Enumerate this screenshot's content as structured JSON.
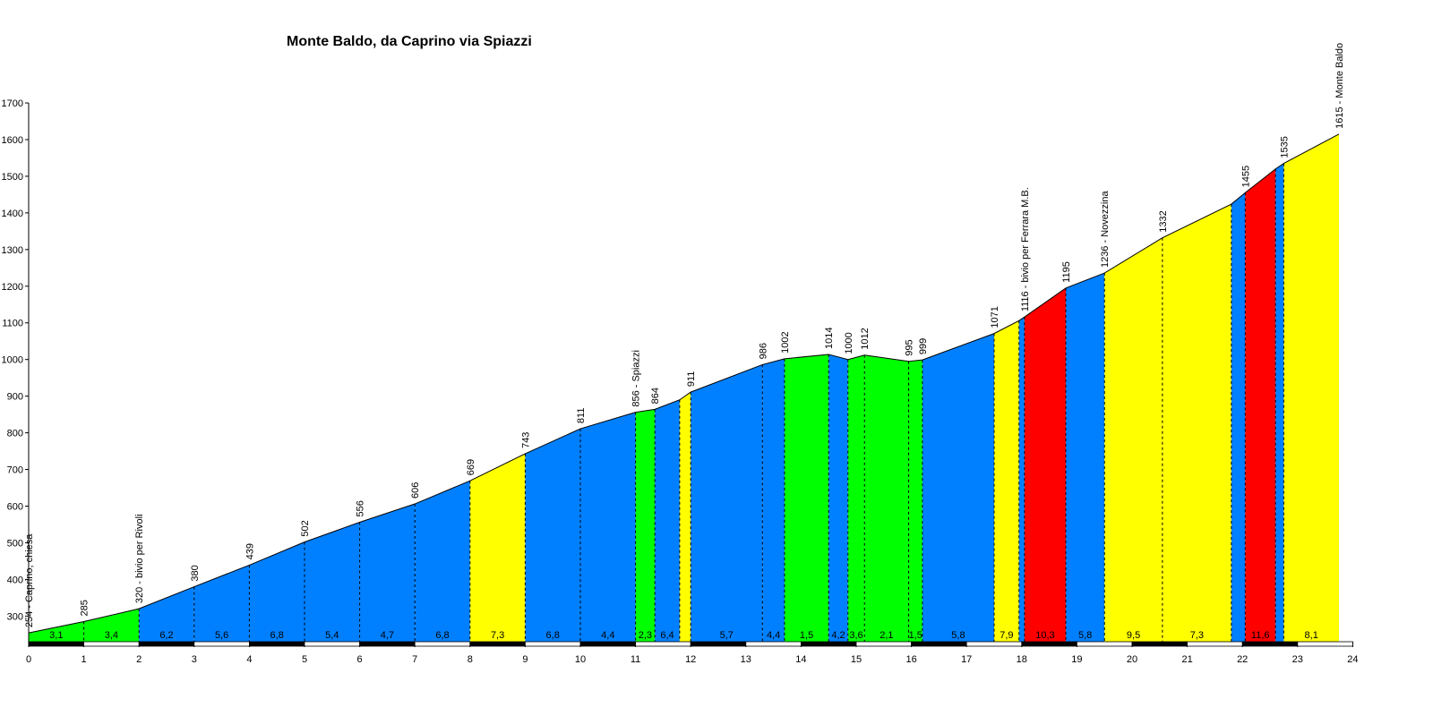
{
  "chart_data": {
    "type": "area",
    "title": "Monte Baldo, da Caprino via Spiazzi",
    "xlabel": "",
    "ylabel": "",
    "xlim": [
      0,
      24
    ],
    "ylim": [
      230,
      1700
    ],
    "x_ticks": [
      0,
      1,
      2,
      3,
      4,
      5,
      6,
      7,
      8,
      9,
      10,
      11,
      12,
      13,
      14,
      15,
      16,
      17,
      18,
      19,
      20,
      21,
      22,
      23,
      24
    ],
    "y_ticks": [
      300,
      400,
      500,
      600,
      700,
      800,
      900,
      1000,
      1100,
      1200,
      1300,
      1400,
      1500,
      1600,
      1700
    ],
    "colors": {
      "green": "#00ff00",
      "blue": "#0080ff",
      "yellow": "#ffff00",
      "red": "#ff0000"
    },
    "profile": [
      {
        "x": 0,
        "y": 254
      },
      {
        "x": 1,
        "y": 285
      },
      {
        "x": 2,
        "y": 320
      },
      {
        "x": 3,
        "y": 380
      },
      {
        "x": 4,
        "y": 439
      },
      {
        "x": 5,
        "y": 502
      },
      {
        "x": 6,
        "y": 556
      },
      {
        "x": 7,
        "y": 606
      },
      {
        "x": 8,
        "y": 669
      },
      {
        "x": 9,
        "y": 743
      },
      {
        "x": 10,
        "y": 811
      },
      {
        "x": 11,
        "y": 856
      },
      {
        "x": 11.35,
        "y": 864
      },
      {
        "x": 11.8,
        "y": 890
      },
      {
        "x": 12,
        "y": 911
      },
      {
        "x": 13.3,
        "y": 986
      },
      {
        "x": 13.7,
        "y": 1002
      },
      {
        "x": 14.5,
        "y": 1014
      },
      {
        "x": 14.85,
        "y": 1000
      },
      {
        "x": 15.15,
        "y": 1012
      },
      {
        "x": 15.95,
        "y": 995
      },
      {
        "x": 16.2,
        "y": 999
      },
      {
        "x": 17.5,
        "y": 1071
      },
      {
        "x": 17.95,
        "y": 1106
      },
      {
        "x": 18.05,
        "y": 1116
      },
      {
        "x": 18.8,
        "y": 1195
      },
      {
        "x": 19.5,
        "y": 1236
      },
      {
        "x": 20.55,
        "y": 1332
      },
      {
        "x": 21.8,
        "y": 1424
      },
      {
        "x": 22.05,
        "y": 1455
      },
      {
        "x": 22.6,
        "y": 1520
      },
      {
        "x": 22.75,
        "y": 1535
      },
      {
        "x": 23.75,
        "y": 1615
      }
    ],
    "segments": [
      {
        "from": 0,
        "to": 1,
        "color": "green",
        "gradient": "3,1"
      },
      {
        "from": 1,
        "to": 2,
        "color": "green",
        "gradient": "3,4"
      },
      {
        "from": 2,
        "to": 3,
        "color": "blue",
        "gradient": "6,2"
      },
      {
        "from": 3,
        "to": 4,
        "color": "blue",
        "gradient": "5,6"
      },
      {
        "from": 4,
        "to": 5,
        "color": "blue",
        "gradient": "6,8"
      },
      {
        "from": 5,
        "to": 6,
        "color": "blue",
        "gradient": "5,4"
      },
      {
        "from": 6,
        "to": 7,
        "color": "blue",
        "gradient": "4,7"
      },
      {
        "from": 7,
        "to": 8,
        "color": "blue",
        "gradient": "6,8"
      },
      {
        "from": 8,
        "to": 9,
        "color": "yellow",
        "gradient": "7,3"
      },
      {
        "from": 9,
        "to": 10,
        "color": "blue",
        "gradient": "6,8"
      },
      {
        "from": 10,
        "to": 11,
        "color": "blue",
        "gradient": "4,4"
      },
      {
        "from": 11,
        "to": 11.35,
        "color": "green",
        "gradient": "2,3"
      },
      {
        "from": 11.35,
        "to": 11.8,
        "color": "blue",
        "gradient": "6,4"
      },
      {
        "from": 11.8,
        "to": 12,
        "color": "yellow",
        "gradient": ""
      },
      {
        "from": 12,
        "to": 13.3,
        "color": "blue",
        "gradient": "5,7"
      },
      {
        "from": 13.3,
        "to": 13.7,
        "color": "blue",
        "gradient": "4,4"
      },
      {
        "from": 13.7,
        "to": 14.5,
        "color": "green",
        "gradient": "1,5"
      },
      {
        "from": 14.5,
        "to": 14.85,
        "color": "blue",
        "gradient": "4,2"
      },
      {
        "from": 14.85,
        "to": 15.15,
        "color": "green",
        "gradient": "3,6"
      },
      {
        "from": 15.15,
        "to": 15.95,
        "color": "green",
        "gradient": "2,1"
      },
      {
        "from": 15.95,
        "to": 16.2,
        "color": "green",
        "gradient": "1,5"
      },
      {
        "from": 16.2,
        "to": 17.5,
        "color": "blue",
        "gradient": "5,8"
      },
      {
        "from": 17.5,
        "to": 17.95,
        "color": "yellow",
        "gradient": "7,9"
      },
      {
        "from": 17.95,
        "to": 18.05,
        "color": "blue",
        "gradient": ""
      },
      {
        "from": 18.05,
        "to": 18.8,
        "color": "red",
        "gradient": "10,3"
      },
      {
        "from": 18.8,
        "to": 19.5,
        "color": "blue",
        "gradient": "5,8"
      },
      {
        "from": 19.5,
        "to": 20.55,
        "color": "yellow",
        "gradient": "9,5"
      },
      {
        "from": 20.55,
        "to": 21.8,
        "color": "yellow",
        "gradient": "7,3"
      },
      {
        "from": 21.8,
        "to": 22.05,
        "color": "blue",
        "gradient": ""
      },
      {
        "from": 22.05,
        "to": 22.6,
        "color": "red",
        "gradient": "11,6"
      },
      {
        "from": 22.6,
        "to": 22.75,
        "color": "blue",
        "gradient": ""
      },
      {
        "from": 22.75,
        "to": 23.75,
        "color": "yellow",
        "gradient": "8,1"
      }
    ],
    "annotations": [
      {
        "x": 0,
        "text": "254 - Caprino, chiesa"
      },
      {
        "x": 1,
        "text": "285"
      },
      {
        "x": 2,
        "text": "320 - bivio per Rivoli"
      },
      {
        "x": 3,
        "text": "380"
      },
      {
        "x": 4,
        "text": "439"
      },
      {
        "x": 5,
        "text": "502"
      },
      {
        "x": 6,
        "text": "556"
      },
      {
        "x": 7,
        "text": "606"
      },
      {
        "x": 8,
        "text": "669"
      },
      {
        "x": 9,
        "text": "743"
      },
      {
        "x": 10,
        "text": "811"
      },
      {
        "x": 11,
        "text": "856 - Spiazzi"
      },
      {
        "x": 11.35,
        "text": "864"
      },
      {
        "x": 12,
        "text": "911"
      },
      {
        "x": 13.3,
        "text": "986"
      },
      {
        "x": 13.7,
        "text": "1002"
      },
      {
        "x": 14.5,
        "text": "1014"
      },
      {
        "x": 14.85,
        "text": "1000"
      },
      {
        "x": 15.15,
        "text": "1012"
      },
      {
        "x": 15.95,
        "text": "995"
      },
      {
        "x": 16.2,
        "text": "999"
      },
      {
        "x": 17.5,
        "text": "1071"
      },
      {
        "x": 18.05,
        "text": "1116 - bivio per Ferrara M.B."
      },
      {
        "x": 18.8,
        "text": "1195"
      },
      {
        "x": 19.5,
        "text": "1236 - Novezzina"
      },
      {
        "x": 20.55,
        "text": "1332"
      },
      {
        "x": 22.05,
        "text": "1455"
      },
      {
        "x": 22.75,
        "text": "1535"
      },
      {
        "x": 23.75,
        "text": "1615 - Monte Baldo"
      }
    ]
  }
}
